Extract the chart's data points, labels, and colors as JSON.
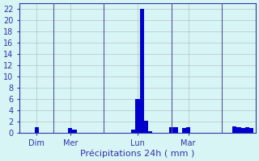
{
  "title": "Précipitations 24h ( mm )",
  "bg_color": "#d8f5f5",
  "bar_color": "#0000cc",
  "grid_color": "#aaaaaa",
  "axis_color": "#3333aa",
  "text_color": "#3333aa",
  "ylim": [
    0,
    23
  ],
  "yticks": [
    0,
    2,
    4,
    6,
    8,
    10,
    12,
    14,
    16,
    18,
    20,
    22
  ],
  "xlabel": "Précipitations 24h ( mm )",
  "num_bars": 56,
  "day_labels": [
    "Dim",
    "Mer",
    "Lun",
    "Mar"
  ],
  "day_positions": [
    4,
    12,
    28,
    40
  ],
  "bar_values": [
    0,
    0,
    0,
    0,
    1,
    0,
    0,
    0,
    0,
    0,
    0,
    0,
    0.8,
    0.5,
    0,
    0,
    0,
    0,
    0,
    0,
    0,
    0,
    0,
    0,
    0,
    0,
    0,
    0.5,
    6.0,
    22.0,
    2.2,
    0.3,
    0,
    0,
    0,
    0,
    1.0,
    1.0,
    0,
    0.8,
    1.0,
    0,
    0,
    0,
    0,
    0,
    0,
    0,
    0,
    0,
    0,
    1.2,
    1.0,
    0.8,
    1.0,
    0.8
  ],
  "vline_positions": [
    8,
    20,
    36,
    48
  ],
  "vline_color": "#555599"
}
